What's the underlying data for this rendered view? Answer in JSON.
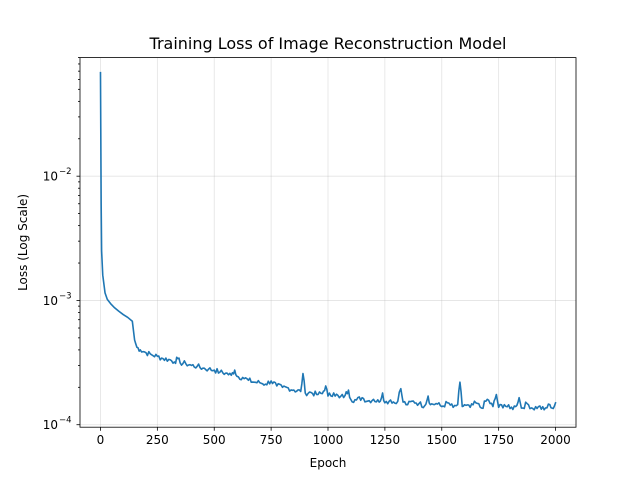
{
  "chart_data": {
    "type": "line",
    "title": "Training Loss of Image Reconstruction Model",
    "xlabel": "Epoch",
    "ylabel": "Loss (Log Scale)",
    "y_scale": "log",
    "xlim": [
      -90,
      2090
    ],
    "ylim": [
      9.55e-05,
      0.09
    ],
    "x_ticks": [
      0,
      250,
      500,
      750,
      1000,
      1250,
      1500,
      1750,
      2000
    ],
    "x_tick_labels": [
      "0",
      "250",
      "500",
      "750",
      "1000",
      "1250",
      "1500",
      "1750",
      "2000"
    ],
    "y_ticks": [
      0.0001,
      0.001,
      0.01
    ],
    "y_tick_labels": [
      {
        "base": "10",
        "exp": "−4"
      },
      {
        "base": "10",
        "exp": "−3"
      },
      {
        "base": "10",
        "exp": "−2"
      }
    ],
    "grid": true,
    "color": "#1f77b4",
    "series": [
      {
        "x": [
          0,
          3,
          5,
          10,
          20,
          30,
          45,
          60,
          80,
          100,
          120,
          140,
          150,
          160,
          175,
          200,
          225,
          250,
          275,
          300,
          325,
          340,
          350,
          375,
          400,
          425,
          450,
          475,
          500,
          525,
          550,
          575,
          590,
          600,
          625,
          650,
          675,
          700,
          725,
          750,
          775,
          800,
          825,
          850,
          880,
          890,
          900,
          925,
          950,
          975,
          990,
          1000,
          1025,
          1050,
          1075,
          1090,
          1100,
          1125,
          1150,
          1175,
          1200,
          1225,
          1240,
          1250,
          1275,
          1300,
          1320,
          1330,
          1350,
          1375,
          1400,
          1425,
          1440,
          1450,
          1475,
          1500,
          1525,
          1550,
          1570,
          1580,
          1590,
          1600,
          1625,
          1650,
          1675,
          1700,
          1725,
          1740,
          1750,
          1775,
          1800,
          1825,
          1840,
          1850,
          1875,
          1900,
          1925,
          1950,
          1975,
          1990,
          2000
        ],
        "y": [
          0.068,
          0.006,
          0.0025,
          0.0016,
          0.00115,
          0.00102,
          0.00094,
          0.00088,
          0.00082,
          0.00077,
          0.00073,
          0.00068,
          0.00048,
          0.00042,
          0.0004,
          0.00038,
          0.000365,
          0.000355,
          0.00034,
          0.000335,
          0.00032,
          0.00034,
          0.000315,
          0.00031,
          0.0003,
          0.000295,
          0.000285,
          0.00028,
          0.000275,
          0.000265,
          0.00026,
          0.00025,
          0.000275,
          0.000245,
          0.00024,
          0.000228,
          0.00022,
          0.000218,
          0.000212,
          0.000225,
          0.000205,
          0.0002,
          0.000198,
          0.00019,
          0.000185,
          0.000258,
          0.00018,
          0.000182,
          0.000175,
          0.000178,
          0.000205,
          0.00017,
          0.00018,
          0.000165,
          0.000172,
          0.00019,
          0.00016,
          0.000158,
          0.000165,
          0.000155,
          0.00016,
          0.000152,
          0.00018,
          0.00015,
          0.000158,
          0.000148,
          0.000195,
          0.000152,
          0.000145,
          0.000155,
          0.000148,
          0.000142,
          0.00017,
          0.000145,
          0.000148,
          0.00014,
          0.00015,
          0.000138,
          0.000145,
          0.00022,
          0.00014,
          0.000145,
          0.000138,
          0.00015,
          0.000136,
          0.00016,
          0.00014,
          0.000175,
          0.000138,
          0.000145,
          0.000135,
          0.00014,
          0.000165,
          0.000136,
          0.000148,
          0.000135,
          0.00014,
          0.000132,
          0.000145,
          0.000135,
          0.00015
        ]
      }
    ]
  }
}
